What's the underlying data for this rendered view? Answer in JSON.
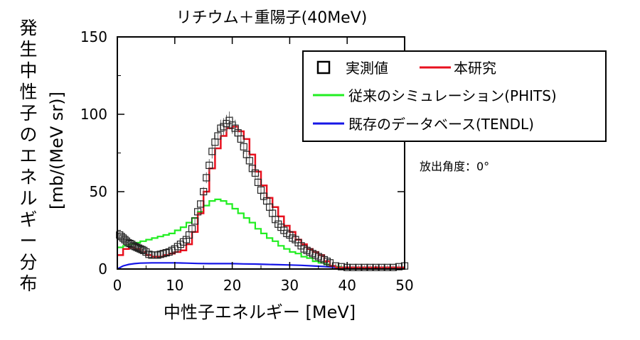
{
  "chart_data": {
    "type": "line",
    "title": "リチウム＋重陽子(40MeV)",
    "xlabel": "中性子エネルギー [MeV]",
    "ylabel_main": "発生中性子のエネルギー分布",
    "ylabel_unit": "[mb/(MeV sr)]",
    "xlim": [
      0,
      50
    ],
    "ylim": [
      0,
      150
    ],
    "x_ticks": [
      "0",
      "10",
      "20",
      "30",
      "40",
      "50"
    ],
    "y_ticks": [
      "0",
      "50",
      "100",
      "150"
    ],
    "annotation": "放出角度：0°",
    "legend_position": "top-right",
    "series": [
      {
        "name": "実測値",
        "kind": "markers",
        "color": "#000000",
        "x": [
          0.4,
          0.7,
          1.0,
          1.3,
          1.6,
          1.9,
          2.2,
          2.5,
          2.8,
          3.1,
          3.4,
          3.7,
          4.0,
          4.3,
          4.6,
          5.0,
          5.5,
          6.0,
          6.5,
          7.0,
          7.5,
          8.0,
          8.5,
          9.0,
          9.5,
          10.0,
          10.5,
          11.0,
          11.5,
          12.0,
          12.5,
          13.0,
          13.5,
          14.0,
          14.5,
          15.0,
          15.5,
          16.0,
          16.5,
          17.0,
          17.5,
          18.0,
          18.5,
          19.0,
          19.5,
          20.0,
          20.5,
          21.0,
          21.5,
          22.0,
          22.5,
          23.0,
          23.5,
          24.0,
          24.5,
          25.0,
          25.5,
          26.0,
          26.5,
          27.0,
          27.5,
          28.0,
          28.5,
          29.0,
          29.5,
          30.0,
          30.5,
          31.0,
          31.5,
          32.0,
          32.5,
          33.0,
          33.5,
          34.0,
          34.5,
          35.0,
          35.5,
          36.0,
          36.5,
          37.0,
          38.0,
          39.0,
          40.0,
          41.0,
          42.0,
          43.0,
          44.0,
          45.0,
          46.0,
          47.0,
          48.0,
          49.0,
          50.0
        ],
        "y": [
          22,
          21,
          20,
          19,
          18,
          17,
          16.5,
          16,
          15,
          14.5,
          14,
          13.5,
          13,
          12.5,
          12,
          11,
          9.5,
          9,
          9,
          9,
          9.5,
          10,
          10.5,
          11,
          12,
          13,
          14.5,
          16,
          17.5,
          19,
          22,
          26,
          31,
          37,
          42,
          50,
          59,
          67,
          76,
          82,
          86,
          91,
          92,
          94,
          96,
          93,
          91,
          88,
          84,
          79,
          74,
          70,
          65,
          62,
          56,
          51,
          47,
          44,
          40,
          36,
          32,
          29,
          27,
          25,
          23,
          22,
          20,
          19,
          17,
          15,
          13,
          12,
          11,
          10,
          9,
          8,
          7,
          6,
          5,
          4,
          2,
          1.5,
          1,
          1,
          1,
          1,
          1,
          1,
          1,
          1,
          1,
          1.5,
          2
        ]
      },
      {
        "name": "本研究",
        "kind": "step",
        "color": "#e8101e",
        "x": [
          0,
          1,
          2,
          3,
          4,
          5,
          6,
          7,
          8,
          9,
          10,
          11,
          12,
          13,
          14,
          15,
          16,
          17,
          18,
          19,
          20,
          21,
          22,
          23,
          24,
          25,
          26,
          27,
          28,
          29,
          30,
          31,
          32,
          33,
          34,
          35,
          36,
          37,
          38,
          39,
          40,
          41,
          42,
          43,
          44,
          45,
          46,
          47,
          48,
          49,
          50
        ],
        "y": [
          9,
          13,
          14,
          13,
          11,
          9,
          8,
          8,
          9,
          10,
          11,
          12,
          16,
          24,
          36,
          50,
          65,
          78,
          86,
          91,
          92,
          89,
          84,
          74,
          63,
          54,
          46,
          40,
          34,
          28,
          24,
          19,
          16,
          13,
          11,
          9,
          5,
          2,
          1,
          1,
          1,
          1,
          1,
          1,
          1,
          1,
          1,
          1,
          1,
          1,
          1
        ]
      },
      {
        "name": "従来のシミュレーション(PHITS)",
        "kind": "step",
        "color": "#22ee22",
        "x": [
          0,
          1,
          2,
          3,
          4,
          5,
          6,
          7,
          8,
          9,
          10,
          11,
          12,
          13,
          14,
          15,
          16,
          17,
          18,
          19,
          20,
          21,
          22,
          23,
          24,
          25,
          26,
          27,
          28,
          29,
          30,
          31,
          32,
          33,
          34,
          35,
          36,
          37,
          38,
          39,
          40,
          41,
          42,
          43,
          44,
          45,
          46,
          47,
          48,
          49,
          50
        ],
        "y": [
          14,
          15,
          16,
          17,
          18,
          19,
          20,
          21,
          22,
          23,
          25,
          27,
          30,
          33,
          37,
          41,
          44,
          45,
          44,
          42,
          39,
          36,
          33,
          30,
          26,
          23,
          20,
          18,
          15,
          13,
          11,
          10,
          8,
          7,
          5,
          4,
          3,
          2,
          1.5,
          1,
          1,
          1,
          1,
          1,
          1,
          1,
          1,
          1,
          1,
          1,
          1
        ]
      },
      {
        "name": "既存のデータベース(TENDL)",
        "kind": "line",
        "color": "#1616e6",
        "x": [
          0,
          1,
          2,
          3,
          4,
          6,
          8,
          10,
          12,
          14,
          16,
          18,
          20,
          22,
          24,
          26,
          28,
          30,
          32,
          34,
          36,
          38,
          40,
          42,
          44,
          46,
          48,
          50
        ],
        "y": [
          0,
          2,
          3,
          3.5,
          3.8,
          4,
          4,
          4,
          3.8,
          3.6,
          3.5,
          3.5,
          3.5,
          3.3,
          3.2,
          3,
          2.8,
          2.6,
          2.4,
          2,
          1.6,
          1.1,
          0.6,
          0.5,
          0.5,
          0.5,
          0.5,
          0.5
        ]
      }
    ]
  }
}
